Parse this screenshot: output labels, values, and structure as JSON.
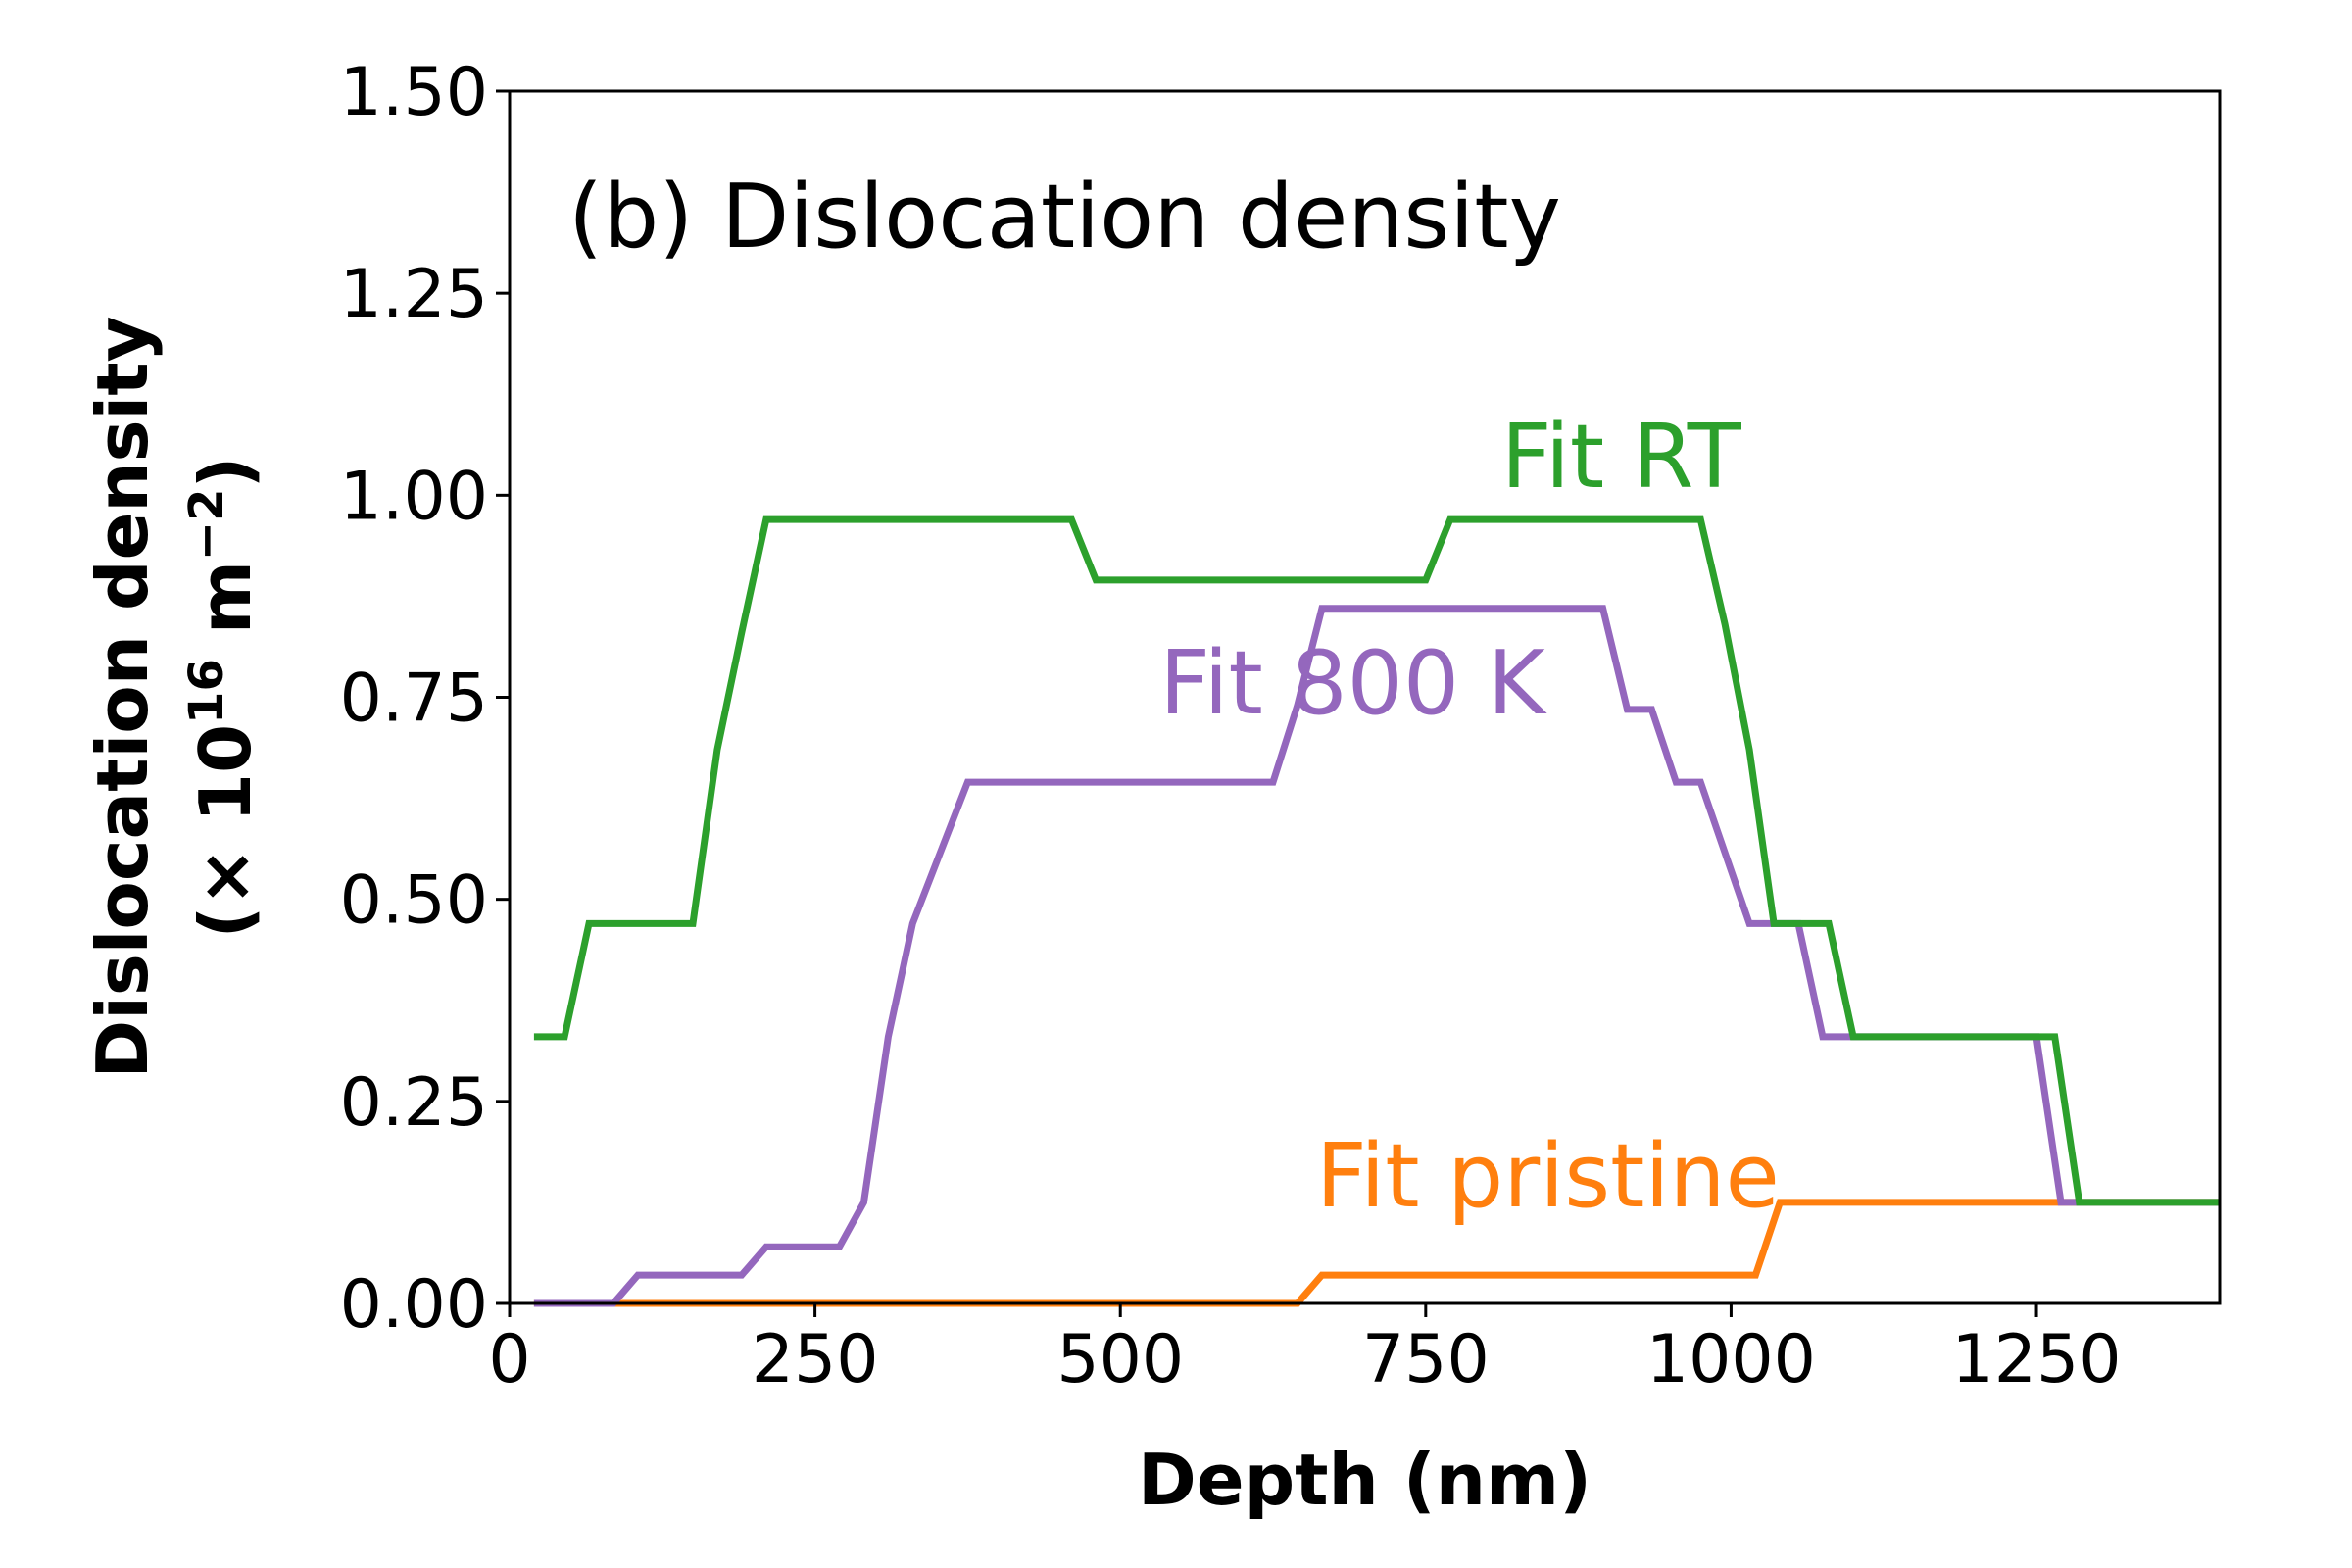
{
  "chart_data": {
    "type": "line",
    "title": "(b) Dislocation density",
    "xlabel": "Depth (nm)",
    "ylabel_line1": "Dislocation density",
    "ylabel_line2_prefix": "(× ",
    "ylabel_base": "10",
    "ylabel_exp": "16",
    "ylabel_unit": " m",
    "ylabel_unit_exp": "−2",
    "ylabel_close": ")",
    "xlim": [
      0,
      1400
    ],
    "ylim": [
      0,
      1.5
    ],
    "xticks": [
      0,
      250,
      500,
      750,
      1000,
      1250
    ],
    "xtick_labels": [
      "0",
      "250",
      "500",
      "750",
      "1000",
      "1250"
    ],
    "yticks": [
      0,
      0.25,
      0.5,
      0.75,
      1.0,
      1.25,
      1.5
    ],
    "ytick_labels": [
      "0.00",
      "0.25",
      "0.50",
      "0.75",
      "1.00",
      "1.25",
      "1.50"
    ],
    "grid": false,
    "series": [
      {
        "name": "Fit pristine",
        "color": "#ff7f0e",
        "label_at": [
          850,
          0.12
        ],
        "points": [
          [
            20,
            0
          ],
          [
            645,
            0
          ],
          [
            665,
            0.035
          ],
          [
            1020,
            0.035
          ],
          [
            1040,
            0.125
          ],
          [
            1400,
            0.125
          ]
        ]
      },
      {
        "name": "Fit 800 K",
        "color": "#9467bd",
        "label_at": [
          690,
          0.73
        ],
        "points": [
          [
            20,
            0
          ],
          [
            85,
            0
          ],
          [
            105,
            0.035
          ],
          [
            190,
            0.035
          ],
          [
            210,
            0.07
          ],
          [
            270,
            0.07
          ],
          [
            290,
            0.125
          ],
          [
            310,
            0.33
          ],
          [
            330,
            0.47
          ],
          [
            375,
            0.645
          ],
          [
            625,
            0.645
          ],
          [
            645,
            0.74
          ],
          [
            665,
            0.86
          ],
          [
            895,
            0.86
          ],
          [
            915,
            0.735
          ],
          [
            935,
            0.735
          ],
          [
            955,
            0.645
          ],
          [
            975,
            0.645
          ],
          [
            1015,
            0.47
          ],
          [
            1055,
            0.47
          ],
          [
            1075,
            0.33
          ],
          [
            1250,
            0.33
          ],
          [
            1270,
            0.125
          ],
          [
            1400,
            0.125
          ]
        ]
      },
      {
        "name": "Fit RT",
        "color": "#2ca02c",
        "label_at": [
          910,
          1.01
        ],
        "points": [
          [
            20,
            0.33
          ],
          [
            45,
            0.33
          ],
          [
            65,
            0.47
          ],
          [
            150,
            0.47
          ],
          [
            170,
            0.685
          ],
          [
            190,
            0.83
          ],
          [
            210,
            0.97
          ],
          [
            460,
            0.97
          ],
          [
            480,
            0.895
          ],
          [
            750,
            0.895
          ],
          [
            770,
            0.97
          ],
          [
            975,
            0.97
          ],
          [
            995,
            0.84
          ],
          [
            1015,
            0.685
          ],
          [
            1035,
            0.47
          ],
          [
            1080,
            0.47
          ],
          [
            1100,
            0.33
          ],
          [
            1265,
            0.33
          ],
          [
            1285,
            0.125
          ],
          [
            1400,
            0.125
          ]
        ]
      }
    ]
  }
}
